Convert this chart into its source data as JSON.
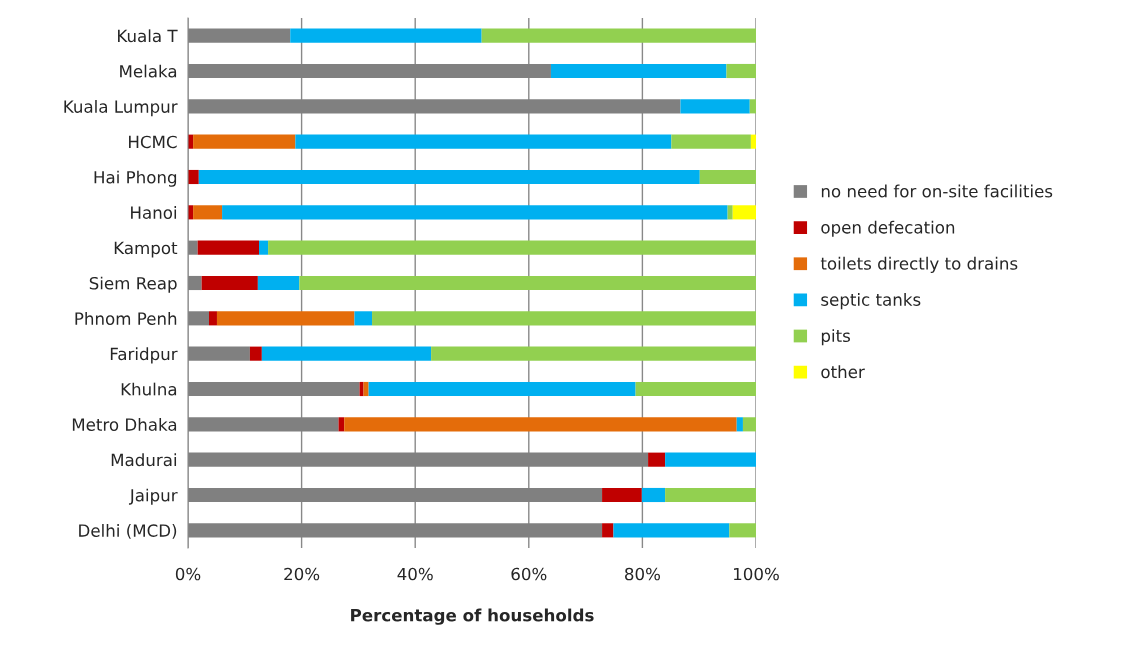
{
  "chart_data": {
    "type": "bar",
    "orientation": "horizontal",
    "stacked": true,
    "xlabel": "Percentage of households",
    "categories": [
      "Kuala T",
      "Melaka",
      "Kuala Lumpur",
      "HCMC",
      "Hai Phong",
      "Hanoi",
      "Kampot",
      "Siem Reap",
      "Phnom Penh",
      "Faridpur",
      "Khulna",
      "Metro Dhaka",
      "Madurai",
      "Jaipur",
      "Delhi (MCD)"
    ],
    "series": [
      {
        "name": "no need for on-site facilities",
        "color": "#808080",
        "values": [
          18.0,
          63.9,
          86.7,
          null,
          null,
          null,
          1.7,
          2.4,
          3.7,
          10.9,
          30.2,
          26.5,
          81.0,
          72.9,
          72.9
        ]
      },
      {
        "name": "open defecation",
        "color": "#c00000",
        "values": [
          null,
          null,
          null,
          0.9,
          1.9,
          0.9,
          10.8,
          9.9,
          1.4,
          2.1,
          0.7,
          1.0,
          3.0,
          7.0,
          2.0
        ]
      },
      {
        "name": "toilets directly to drains",
        "color": "#e46c0a",
        "values": [
          null,
          null,
          null,
          18.0,
          null,
          5.1,
          null,
          null,
          24.2,
          null,
          0.9,
          69.1,
          null,
          null,
          null
        ]
      },
      {
        "name": "septic tanks",
        "color": "#00b0f0",
        "values": [
          33.7,
          30.9,
          12.2,
          66.2,
          88.2,
          89.0,
          1.6,
          7.3,
          3.1,
          29.8,
          47.0,
          1.1,
          16.0,
          4.1,
          20.4
        ]
      },
      {
        "name": "pits",
        "color": "#92d050",
        "values": [
          48.3,
          5.2,
          1.1,
          14.0,
          9.9,
          0.9,
          85.9,
          80.4,
          67.6,
          57.2,
          21.2,
          2.3,
          null,
          16.0,
          4.7
        ]
      },
      {
        "name": "other",
        "color": "#ffff00",
        "values": [
          null,
          null,
          null,
          0.9,
          null,
          4.1,
          null,
          null,
          null,
          null,
          null,
          null,
          null,
          null,
          null
        ]
      }
    ],
    "xlim": [
      0,
      100
    ],
    "xticks": [
      {
        "value": 0,
        "label": "0%"
      },
      {
        "value": 20,
        "label": "20%"
      },
      {
        "value": 40,
        "label": "40%"
      },
      {
        "value": 60,
        "label": "60%"
      },
      {
        "value": 80,
        "label": "80%"
      },
      {
        "value": 100,
        "label": "100%"
      }
    ],
    "grid": "x",
    "legend": "right"
  }
}
